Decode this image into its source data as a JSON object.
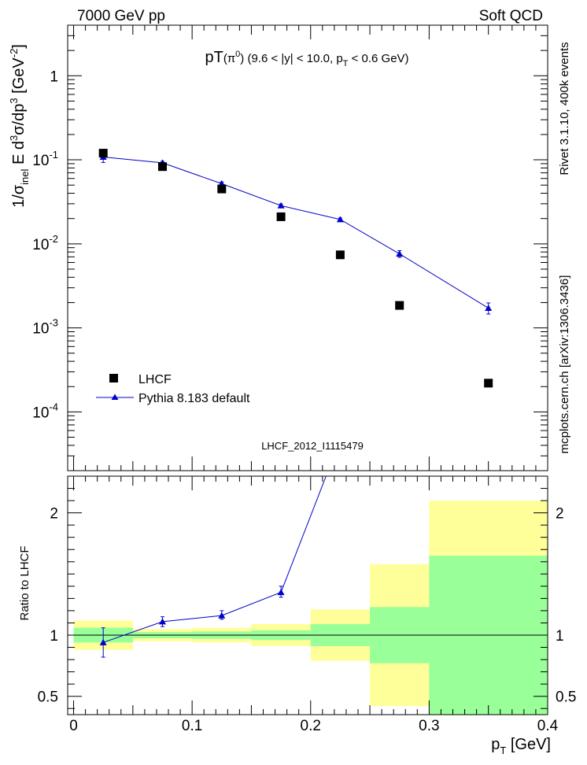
{
  "header": {
    "left": "7000 GeV pp",
    "right": "Soft QCD"
  },
  "side_text": {
    "top": "Rivet 3.1.10,  400k events",
    "bottom": "mcplots.cern.ch [arXiv:1306.3436]"
  },
  "watermark": "LHCF_2012_I1115479",
  "colors": {
    "mc": "#0000cc",
    "data": "#000000",
    "band_inner": "#99ff99",
    "band_outer": "#ffff99"
  },
  "chart_data": [
    {
      "type": "scatter",
      "panel": "main",
      "title": {
        "main": "pT",
        "paren_open": "(",
        "pi": "π",
        "pi_sup": "0",
        "paren_close": ")",
        "range": " (9.6 < |y| < 10.0, p",
        "range_sub": "T",
        "range_end": " < 0.6 GeV)"
      },
      "ylabel": {
        "a": "1/σ",
        "a_sub": "inel",
        "b": " E d",
        "b_sup": "3",
        "c": "σ/dp",
        "c_sup": "3",
        "d": " [GeV",
        "d_sup": "-2",
        "e": "]"
      },
      "yscale": "log",
      "ylim": [
        2e-05,
        4
      ],
      "xlim": [
        -0.005,
        0.4
      ],
      "yticks": [
        {
          "v": 1,
          "label": "1"
        },
        {
          "v": 0.1,
          "base": "10",
          "exp": "-1"
        },
        {
          "v": 0.01,
          "base": "10",
          "exp": "-2"
        },
        {
          "v": 0.001,
          "base": "10",
          "exp": "-3"
        },
        {
          "v": 0.0001,
          "base": "10",
          "exp": "-4"
        }
      ],
      "legend": {
        "placement": "bottom-left",
        "entries": [
          "LHCF",
          "Pythia 8.183 default"
        ]
      },
      "series": [
        {
          "name": "LHCF",
          "x": [
            0.025,
            0.075,
            0.125,
            0.175,
            0.225,
            0.275,
            0.35
          ],
          "y": [
            0.12,
            0.083,
            0.045,
            0.021,
            0.0074,
            0.00185,
            0.00022
          ]
        },
        {
          "name": "Pythia 8.183 default",
          "x": [
            0.025,
            0.075,
            0.125,
            0.175,
            0.225,
            0.275,
            0.35
          ],
          "y": [
            0.108,
            0.092,
            0.052,
            0.0285,
            0.0195,
            0.0076,
            0.00172
          ],
          "yerr_lo": [
            0.093,
            0.088,
            0.0495,
            0.0272,
            0.0187,
            0.0069,
            0.00146
          ],
          "yerr_hi": [
            0.123,
            0.096,
            0.0545,
            0.0298,
            0.0203,
            0.0083,
            0.00198
          ]
        }
      ]
    },
    {
      "type": "line",
      "panel": "ratio",
      "ylabel": "Ratio to LHCF",
      "xlabel": {
        "main": "p",
        "sub": "T",
        "unit": " [GeV]"
      },
      "ylim": [
        0.35,
        2.3
      ],
      "xlim": [
        -0.005,
        0.4
      ],
      "xticks": [
        {
          "v": 0,
          "label": "0"
        },
        {
          "v": 0.1,
          "label": "0.1"
        },
        {
          "v": 0.2,
          "label": "0.2"
        },
        {
          "v": 0.3,
          "label": "0.3"
        },
        {
          "v": 0.4,
          "label": "0.4"
        }
      ],
      "yticks": [
        {
          "v": 0.5,
          "label": "0.5"
        },
        {
          "v": 1,
          "label": "1"
        },
        {
          "v": 2,
          "label": "2"
        }
      ],
      "bands": [
        {
          "x0": 0.0,
          "x1": 0.05,
          "inner": [
            0.94,
            1.06
          ],
          "outer": [
            0.88,
            1.12
          ]
        },
        {
          "x0": 0.05,
          "x1": 0.1,
          "inner": [
            0.975,
            1.025
          ],
          "outer": [
            0.95,
            1.05
          ]
        },
        {
          "x0": 0.1,
          "x1": 0.15,
          "inner": [
            0.97,
            1.03
          ],
          "outer": [
            0.94,
            1.06
          ]
        },
        {
          "x0": 0.15,
          "x1": 0.2,
          "inner": [
            0.96,
            1.04
          ],
          "outer": [
            0.91,
            1.09
          ]
        },
        {
          "x0": 0.2,
          "x1": 0.25,
          "inner": [
            0.91,
            1.09
          ],
          "outer": [
            0.79,
            1.21
          ]
        },
        {
          "x0": 0.25,
          "x1": 0.3,
          "inner": [
            0.77,
            1.23
          ],
          "outer": [
            0.42,
            1.58
          ]
        },
        {
          "x0": 0.3,
          "x1": 0.4,
          "inner": [
            0.35,
            1.65
          ],
          "outer": [
            0.35,
            2.1
          ]
        }
      ],
      "series": [
        {
          "name": "Pythia 8.183 default",
          "x": [
            0.025,
            0.075,
            0.125,
            0.175,
            0.225
          ],
          "y": [
            0.94,
            1.11,
            1.16,
            1.35,
            2.6
          ],
          "yerr_lo": [
            0.82,
            1.07,
            1.13,
            1.31,
            2.6
          ],
          "yerr_hi": [
            1.06,
            1.15,
            1.2,
            1.4,
            2.6
          ]
        }
      ]
    }
  ]
}
